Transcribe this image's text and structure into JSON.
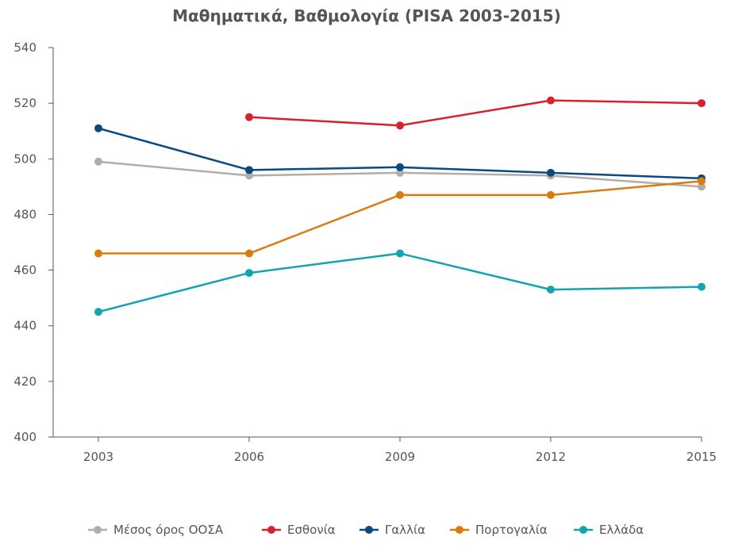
{
  "chart_data": {
    "type": "line",
    "title": "Μαθηματικά, Βαθμολογία (PISA 2003-2015)",
    "xlabel": "",
    "ylabel": "",
    "categories": [
      "2003",
      "2006",
      "2009",
      "2012",
      "2015"
    ],
    "ylim": [
      400,
      540
    ],
    "yticks": [
      400,
      420,
      440,
      460,
      480,
      500,
      520,
      540
    ],
    "grid": false,
    "legend_position": "bottom",
    "series": [
      {
        "name": "Μέσος όρος ΟΟΣΑ",
        "color": "#b3aca7",
        "values": [
          499,
          494,
          495,
          494,
          490
        ]
      },
      {
        "name": "Εσθονία",
        "color": "#d7222c",
        "values": [
          null,
          515,
          512,
          521,
          520
        ]
      },
      {
        "name": "Γαλλία",
        "color": "#0a4a7e",
        "values": [
          511,
          496,
          497,
          495,
          493
        ]
      },
      {
        "name": "Πορτογαλία",
        "color": "#d97b0f",
        "values": [
          466,
          466,
          487,
          487,
          492
        ]
      },
      {
        "name": "Ελλάδα",
        "color": "#12a4b0",
        "values": [
          445,
          459,
          466,
          453,
          454
        ]
      }
    ]
  }
}
